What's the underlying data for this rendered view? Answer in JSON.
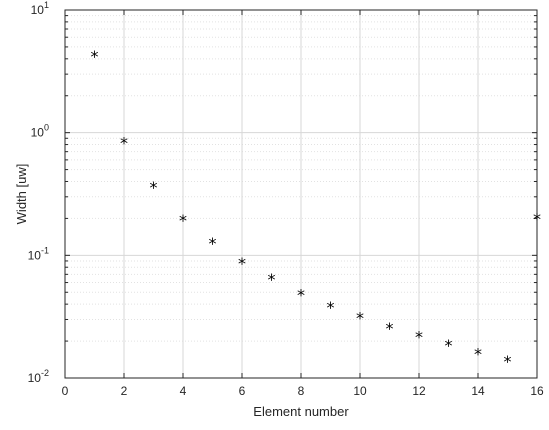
{
  "chart_data": {
    "type": "scatter",
    "title": "",
    "xlabel": "Element number",
    "ylabel": "Width [uw]",
    "xlim": [
      0,
      16
    ],
    "ylim": [
      0.01,
      10
    ],
    "y_scale": "log",
    "grid": true,
    "minor_grid_y": true,
    "marker": "*",
    "marker_color": "#000000",
    "x_ticks": [
      0,
      2,
      4,
      6,
      8,
      10,
      12,
      14,
      16
    ],
    "x_tick_labels": [
      "0",
      "2",
      "4",
      "6",
      "8",
      "10",
      "12",
      "14",
      "16"
    ],
    "y_ticks": [
      {
        "value": 0.01,
        "base": "10",
        "exp": "-2"
      },
      {
        "value": 0.1,
        "base": "10",
        "exp": "-1"
      },
      {
        "value": 1,
        "base": "10",
        "exp": "0"
      },
      {
        "value": 10,
        "base": "10",
        "exp": "1"
      }
    ],
    "series": [
      {
        "x": [
          1,
          2,
          3,
          4,
          5,
          6,
          7,
          8,
          9,
          10,
          11,
          12,
          13,
          14,
          15,
          16
        ],
        "y": [
          4.2,
          0.83,
          0.36,
          0.195,
          0.126,
          0.087,
          0.064,
          0.048,
          0.038,
          0.031,
          0.0255,
          0.0217,
          0.0185,
          0.0158,
          0.0137,
          0.2
        ]
      }
    ]
  }
}
